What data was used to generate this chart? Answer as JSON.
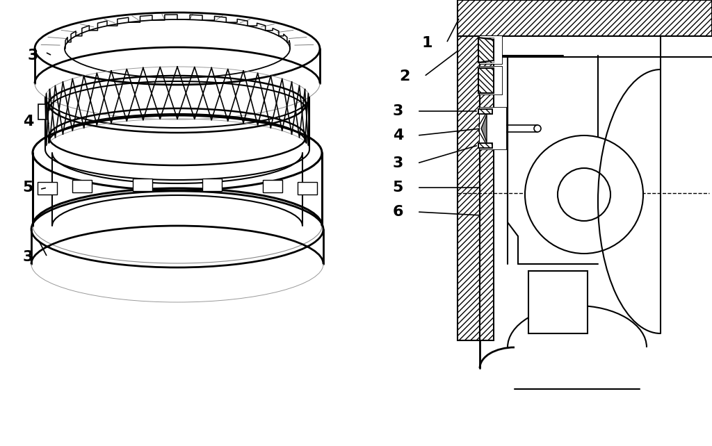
{
  "bg_color": "#ffffff",
  "line_color": "#000000",
  "fig_width": 10.24,
  "fig_height": 6.42,
  "dpi": 100
}
